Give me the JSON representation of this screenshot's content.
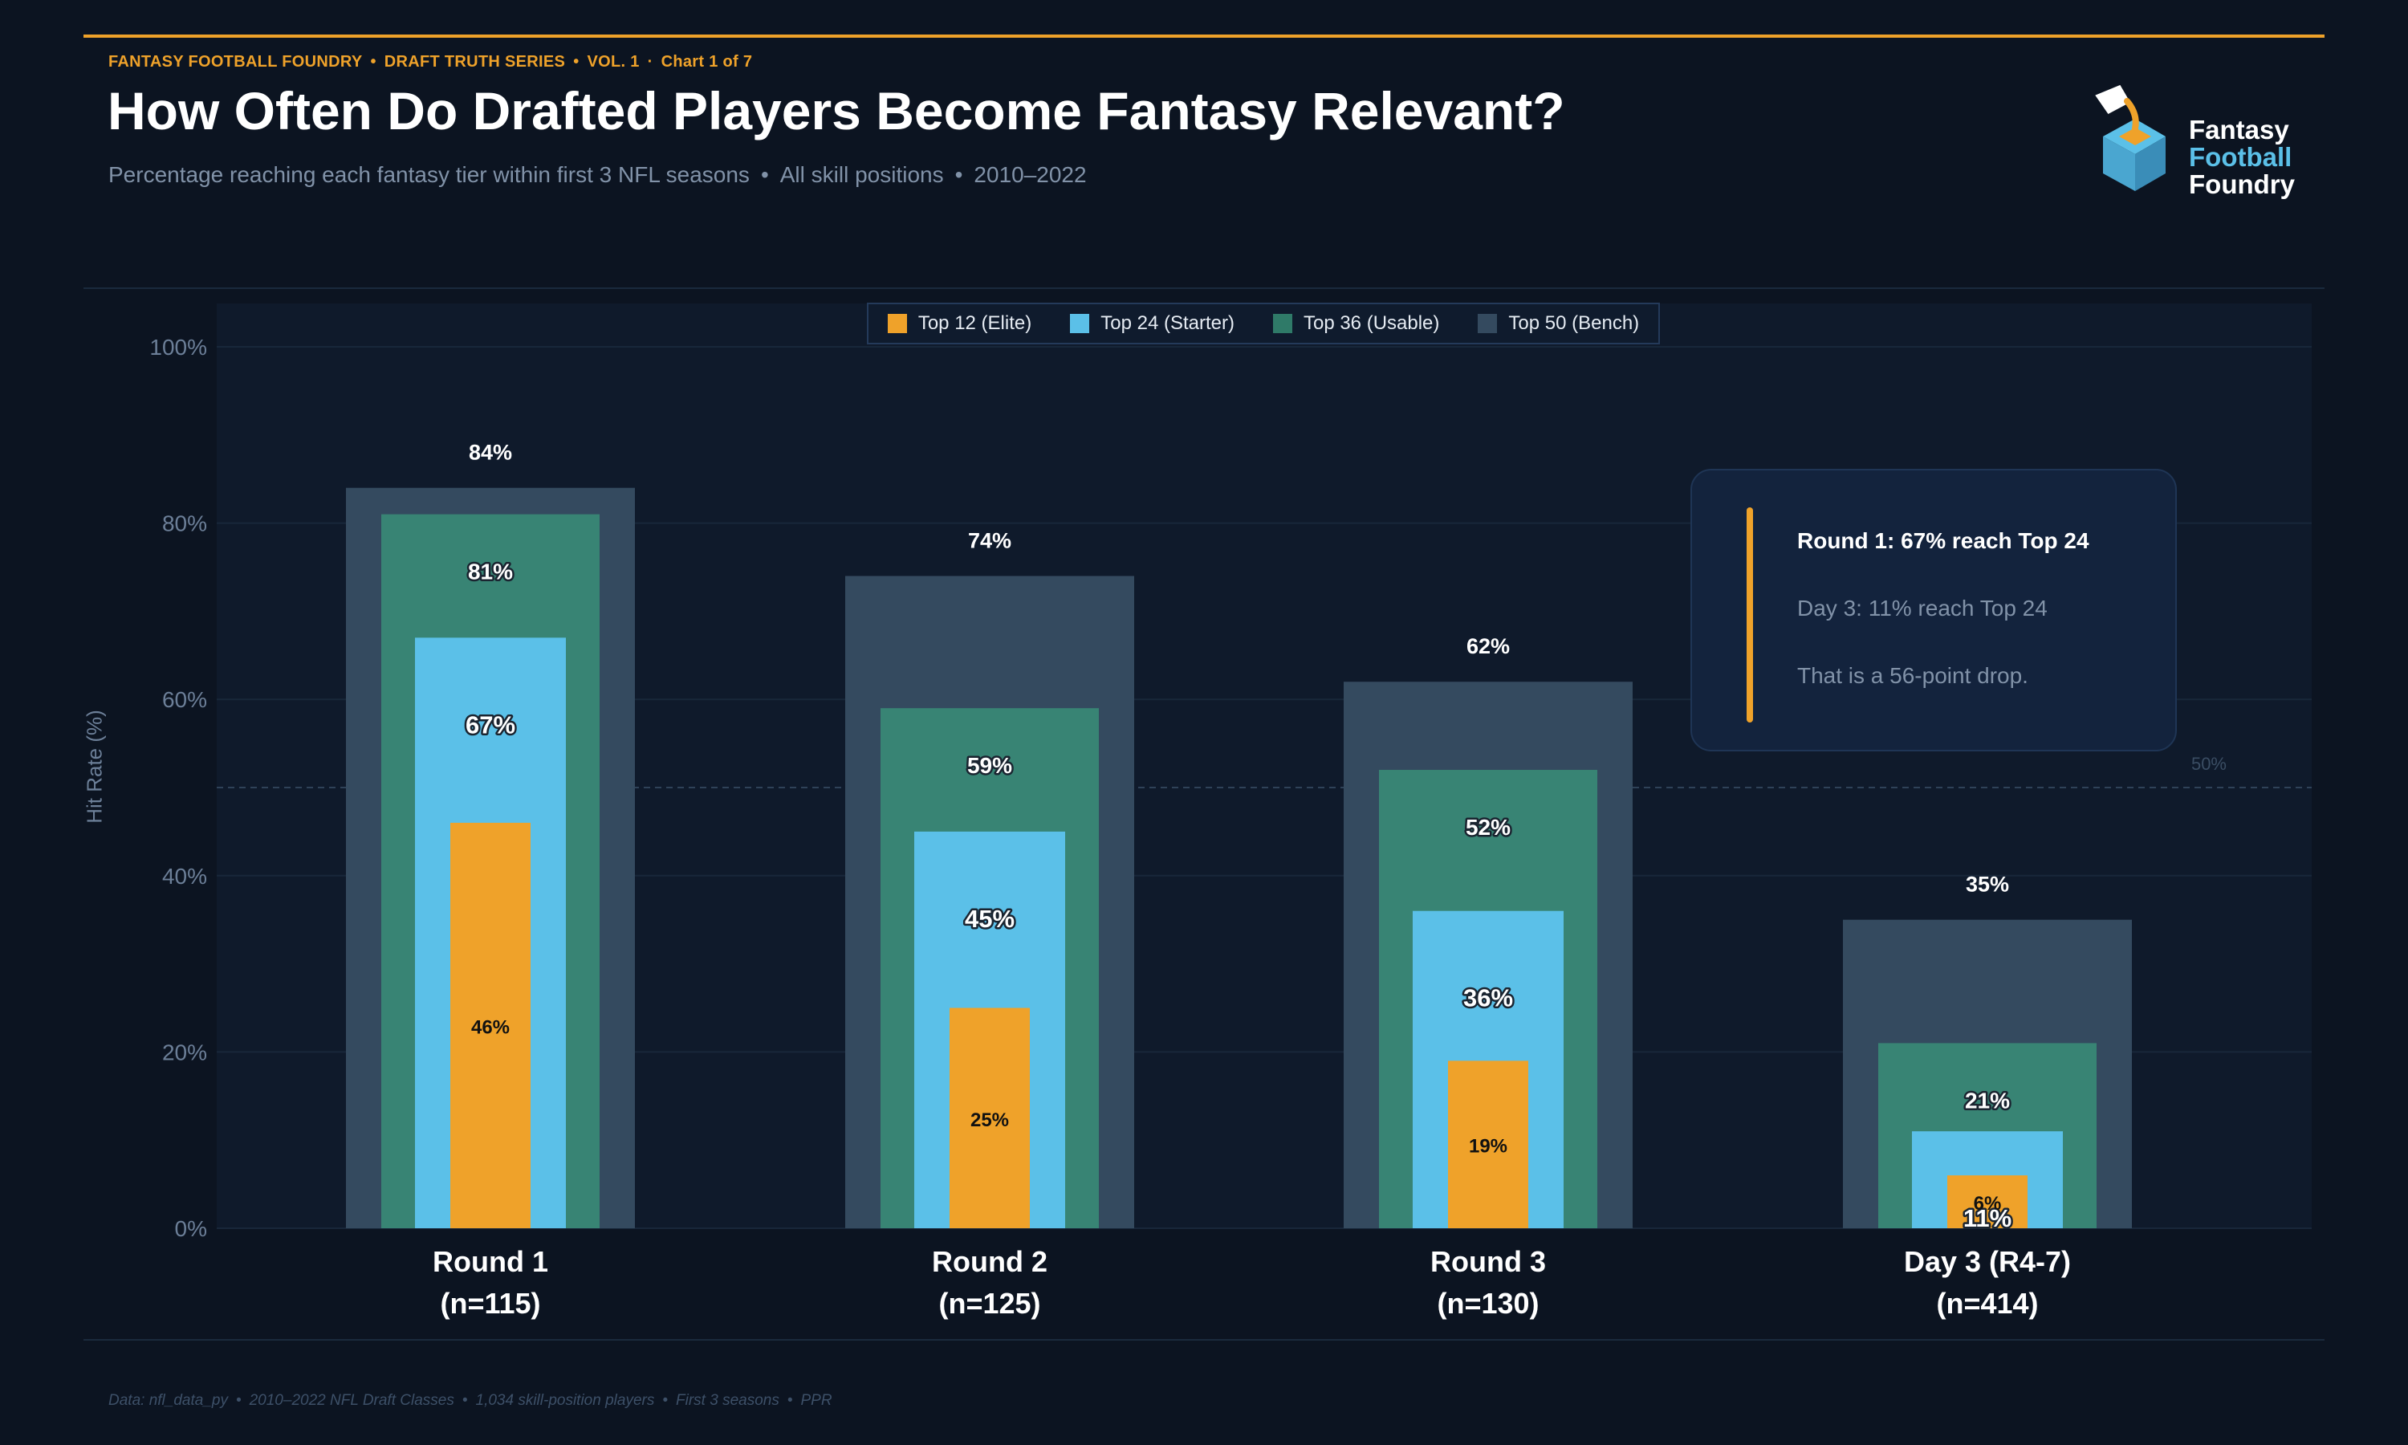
{
  "header": {
    "kicker": [
      "FANTASY FOOTBALL FOUNDRY",
      "DRAFT TRUTH SERIES",
      "VOL. 1",
      "Chart 1 of 7"
    ],
    "kicker_separators": [
      "•",
      "•",
      "·"
    ],
    "title": "How Often Do Drafted Players Become Fantasy Relevant?",
    "subtitle": [
      "Percentage reaching each fantasy tier within first 3 NFL seasons",
      "All skill positions",
      "2010–2022"
    ],
    "subtitle_separator": "•"
  },
  "logo": {
    "line1": "Fantasy",
    "line2": "Football",
    "line3": "Foundry"
  },
  "colors": {
    "accent": "#efa22a",
    "elite": "#efa22a",
    "starter": "#5bc0e8",
    "usable": "#388474",
    "bench": "#344a5f",
    "background": "#0c1421",
    "plot_bg": "#0f1a2b"
  },
  "callout": {
    "line1": "Round 1: 67% reach Top 24",
    "line2": "Day 3: 11% reach Top 24",
    "line3": "That is a 56-point drop."
  },
  "footer": [
    "Data: nfl_data_py",
    "2010–2022 NFL Draft Classes",
    "1,034 skill-position players",
    "First 3 seasons",
    "PPR"
  ],
  "footer_separator": "•",
  "chart_data": {
    "type": "bar",
    "title": "How Often Do Drafted Players Become Fantasy Relevant?",
    "ylabel": "Hit Rate (%)",
    "xlabel": "",
    "ylim": [
      0,
      100
    ],
    "yticks": [
      0,
      20,
      40,
      60,
      80,
      100
    ],
    "ytick_labels": [
      "0%",
      "20%",
      "40%",
      "60%",
      "80%",
      "100%"
    ],
    "reference_line": {
      "value": 50,
      "label": "50%"
    },
    "categories": [
      "Round 1",
      "Round 2",
      "Round 3",
      "Day 3 (R4-7)"
    ],
    "category_counts": [
      "(n=115)",
      "(n=125)",
      "(n=130)",
      "(n=414)"
    ],
    "legend_position": "top-center",
    "series": [
      {
        "name": "Top 50 (Bench)",
        "values": [
          84,
          74,
          62,
          35
        ]
      },
      {
        "name": "Top 36 (Usable)",
        "values": [
          81,
          59,
          52,
          21
        ]
      },
      {
        "name": "Top 24 (Starter)",
        "values": [
          67,
          45,
          36,
          11
        ]
      },
      {
        "name": "Top 12 (Elite)",
        "values": [
          46,
          25,
          19,
          6
        ]
      }
    ],
    "legend": [
      "Top 12 (Elite)",
      "Top 24 (Starter)",
      "Top 36 (Usable)",
      "Top 50 (Bench)"
    ]
  }
}
